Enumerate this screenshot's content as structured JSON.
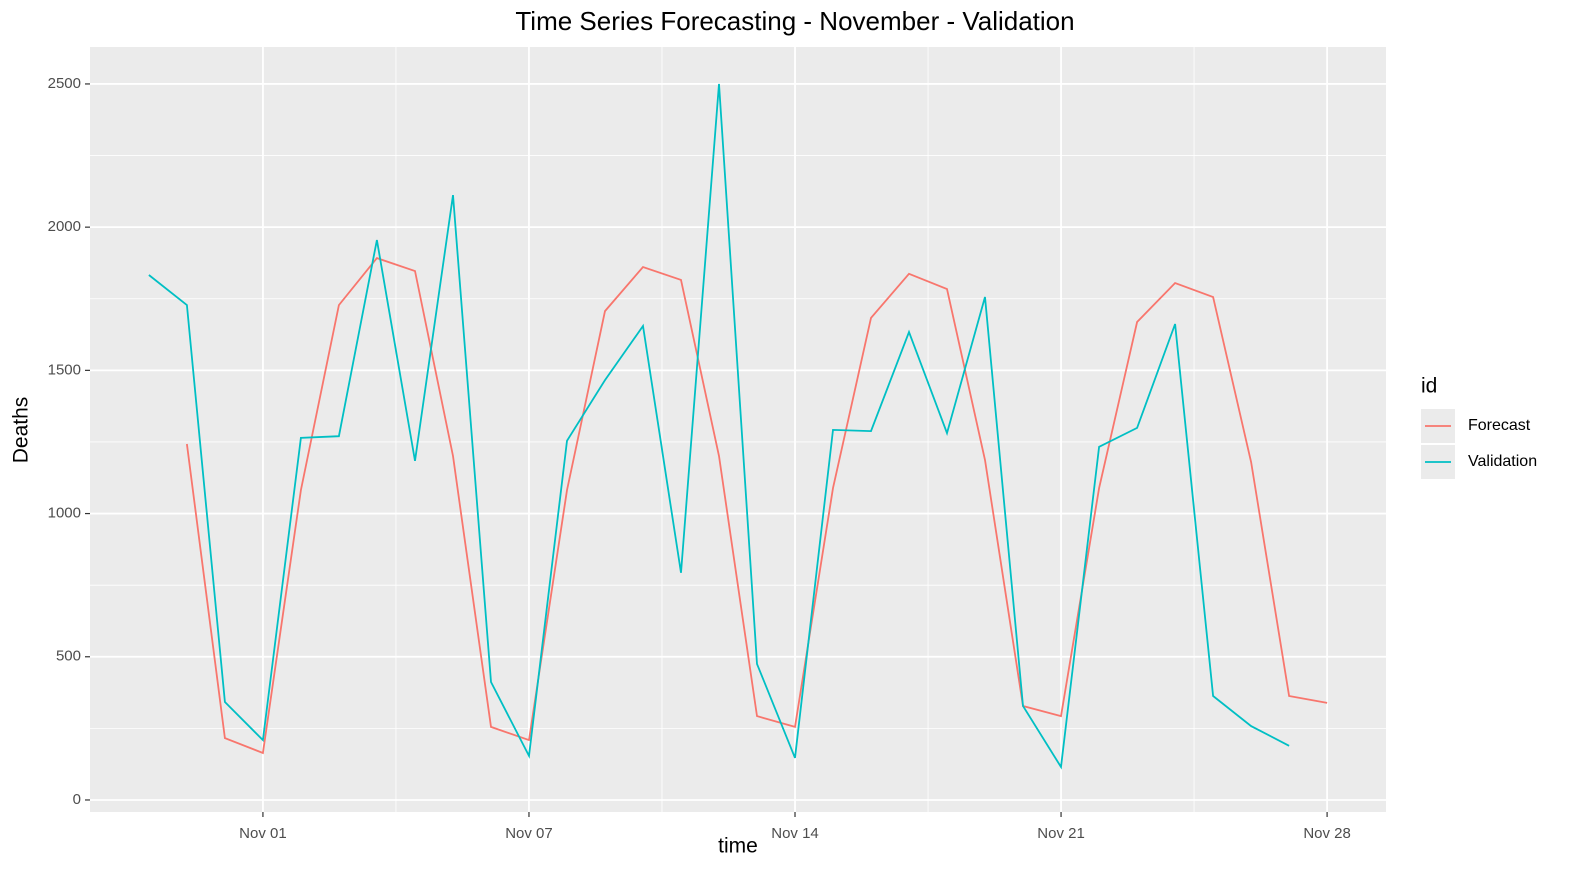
{
  "chart_data": {
    "type": "line",
    "title": "Time Series Forecasting - November - Validation",
    "x_label": "time",
    "y_label": "Deaths",
    "legend_title": "id",
    "legend_position": "right",
    "grid": true,
    "xlim": [
      -4.55,
      29.55
    ],
    "xticks": [
      {
        "value": 0,
        "label": "Nov 01"
      },
      {
        "value": 7,
        "label": "Nov 07"
      },
      {
        "value": 14,
        "label": "Nov 14"
      },
      {
        "value": 21,
        "label": "Nov 21"
      },
      {
        "value": 28,
        "label": "Nov 28"
      }
    ],
    "ylim": [
      -42,
      2629
    ],
    "yticks": [
      0,
      500,
      1000,
      1500,
      2000,
      2500
    ],
    "series": [
      {
        "name": "Forecast",
        "color": "#F8766D",
        "x": [
          -2,
          -1,
          0,
          1,
          2,
          3,
          4,
          5,
          6,
          7,
          8,
          9,
          10,
          11,
          12,
          13,
          14,
          15,
          16,
          17,
          18,
          19,
          20,
          21,
          22,
          23,
          24,
          25,
          26,
          27,
          28
        ],
        "values": [
          1243,
          216,
          164,
          1082,
          1728,
          1892,
          1847,
          1201,
          255,
          209,
          1082,
          1707,
          1861,
          1816,
          1201,
          293,
          255,
          1089,
          1683,
          1837,
          1784,
          1187,
          328,
          293,
          1089,
          1669,
          1805,
          1756,
          1180,
          363,
          339
        ]
      },
      {
        "name": "Validation",
        "color": "#00BFC4",
        "x": [
          -3,
          -2,
          -1,
          0,
          1,
          2,
          3,
          4,
          5,
          6,
          7,
          8,
          9,
          10,
          11,
          12,
          13,
          14,
          15,
          16,
          17,
          18,
          19,
          20,
          21,
          22,
          23,
          24,
          25,
          26,
          27
        ],
        "values": [
          1833,
          1728,
          342,
          209,
          1264,
          1270,
          1955,
          1184,
          2112,
          412,
          154,
          1254,
          1466,
          1655,
          793,
          2500,
          475,
          147,
          1292,
          1288,
          1634,
          1281,
          1756,
          328,
          115,
          1233,
          1299,
          1662,
          363,
          258,
          189
        ]
      }
    ]
  }
}
